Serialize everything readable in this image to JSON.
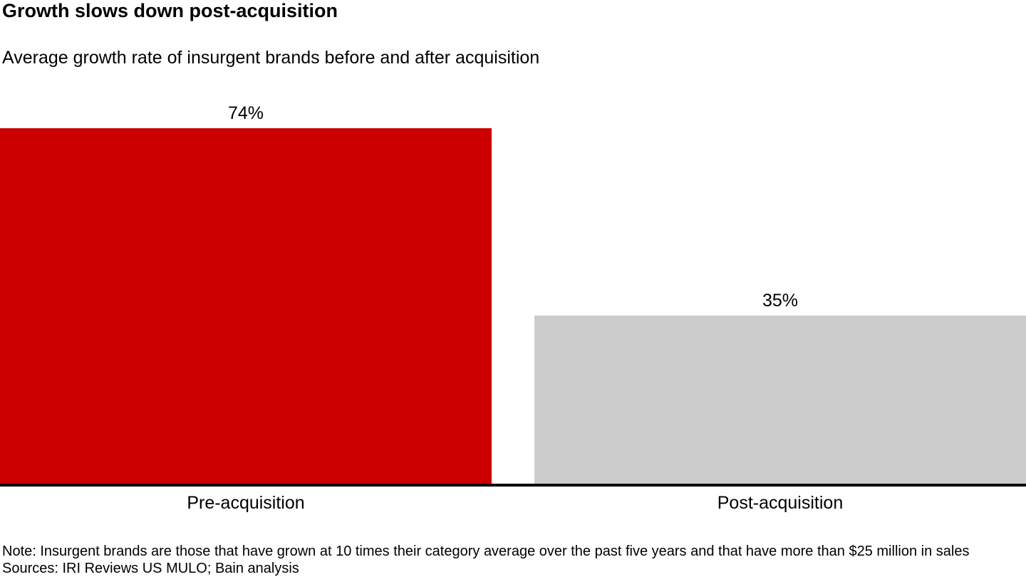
{
  "header": {
    "title": "Growth slows down post-acquisition",
    "subtitle": "Average growth rate of insurgent brands before and after acquisition"
  },
  "chart_data": {
    "type": "bar",
    "title": "Growth slows down post-acquisition",
    "subtitle": "Average growth rate of insurgent brands before and after acquisition",
    "categories": [
      "Pre-acquisition",
      "Post-acquisition"
    ],
    "values": [
      74,
      35
    ],
    "value_labels": [
      "74%",
      "35%"
    ],
    "bar_colors": [
      "#cc0000",
      "#cccccc"
    ],
    "xlabel": "",
    "ylabel": "",
    "ylim": [
      0,
      74
    ],
    "grid": false,
    "legend_position": "none",
    "axis_line_color": "#000000",
    "value_label_position": "above-bar"
  },
  "footer": {
    "note": "Note: Insurgent brands are those that have grown at 10 times their category average over the past five years and that have more than $25 million in sales",
    "sources": "Sources: IRI Reviews US MULO; Bain analysis"
  }
}
